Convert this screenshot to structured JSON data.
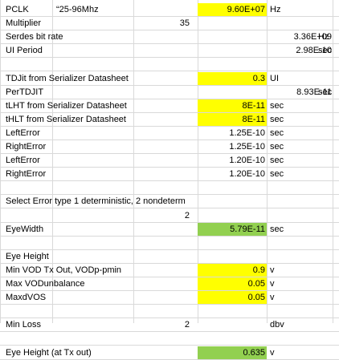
{
  "rows": [
    {
      "label": "PCLK",
      "note": "“25-96Mhz",
      "value": "9.60E+07",
      "unit": "Hz",
      "hl": "y"
    },
    {
      "label": "Multiplier",
      "mid": "35"
    },
    {
      "label": "Serdes bit rate",
      "far": "3.36E+09",
      "farunit": "Hz"
    },
    {
      "label": "UI Period",
      "far": "2.98E-10",
      "farunit": "sec"
    },
    {},
    {
      "label": "TDJit from Serializer Datasheet",
      "value": "0.3",
      "unit": "UI",
      "hl": "y"
    },
    {
      "label": "PerTDJIT",
      "far": "8.93E-11",
      "farunit": "sec"
    },
    {
      "label": "tLHT from Serializer Datasheet",
      "value": "8E-11",
      "unit": "sec",
      "hl": "y"
    },
    {
      "label": "tHLT from Serializer Datasheet",
      "value": "8E-11",
      "unit": "sec",
      "hl": "y"
    },
    {
      "label": "LeftError",
      "value": "1.25E-10",
      "unit": "sec"
    },
    {
      "label": "RightError",
      "value": "1.25E-10",
      "unit": "sec"
    },
    {
      "label": "LeftError",
      "value": "1.20E-10",
      "unit": "sec"
    },
    {
      "label": "RightError",
      "value": "1.20E-10",
      "unit": "sec"
    },
    {},
    {
      "label": "Select Error type 1 deterministic, 2 nondeterm"
    },
    {
      "mid": "2"
    },
    {
      "label": "EyeWidth",
      "value": "5.79E-11",
      "unit": "sec",
      "hl": "g"
    },
    {},
    {
      "label": "Eye Height"
    },
    {
      "label": "Min VOD Tx Out, VODp-pmin",
      "value": "0.9",
      "unit": "v",
      "hl": "y"
    },
    {
      "label": "Max VODunbalance",
      "value": "0.05",
      "unit": "v",
      "hl": "y"
    },
    {
      "label": "MaxdVOS",
      "value": "0.05",
      "unit": "v",
      "hl": "y"
    },
    {},
    {
      "label": "Min Loss",
      "mid": "2",
      "unit": "dbv"
    },
    {},
    {
      "label": "Eye Height (at Tx out)",
      "value": "0.635",
      "unit": "v",
      "hl": "g"
    }
  ]
}
